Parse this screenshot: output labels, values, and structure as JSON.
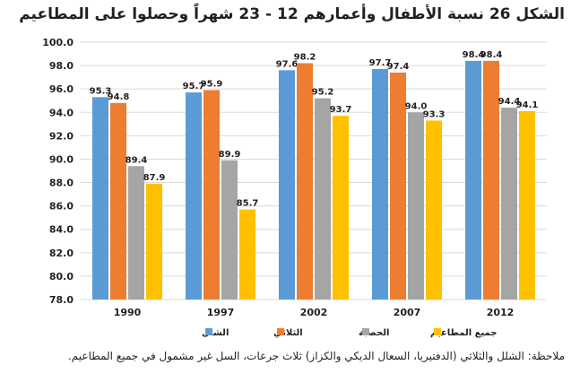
{
  "chart_data": {
    "type": "bar",
    "title": "الشكل 26 نسبة الأطفال وأعمارهم 12 - 23 شهراً وحصلوا على المطاعيم",
    "categories": [
      "1990",
      "1997",
      "2002",
      "2007",
      "2012"
    ],
    "series": [
      {
        "name": "الشلل",
        "color": "#5b9bd5",
        "values": [
          95.3,
          95.7,
          97.6,
          97.7,
          98.4
        ]
      },
      {
        "name": "الثلاثي",
        "color": "#ed7d31",
        "values": [
          94.8,
          95.9,
          98.2,
          97.4,
          98.4
        ]
      },
      {
        "name": "الحصبة",
        "color": "#a5a5a5",
        "values": [
          89.4,
          89.9,
          95.2,
          94.0,
          94.4
        ]
      },
      {
        "name": "جميع المطاعيم",
        "color": "#ffc000",
        "values": [
          87.9,
          85.7,
          93.7,
          93.3,
          94.1
        ]
      }
    ],
    "ylim": [
      78.0,
      100.0
    ],
    "yticks": [
      "78.0",
      "80.0",
      "82.0",
      "84.0",
      "86.0",
      "88.0",
      "90.0",
      "92.0",
      "94.0",
      "96.0",
      "98.0",
      "100.0"
    ],
    "grid": true,
    "legend": "bottom",
    "note": "ملاحظة: الشلل والثلاثي (الدفتيريا، السعال الديكي والكزاز) ثلاث جرعات، السل غير مشمول في جميع المطاعيم."
  }
}
